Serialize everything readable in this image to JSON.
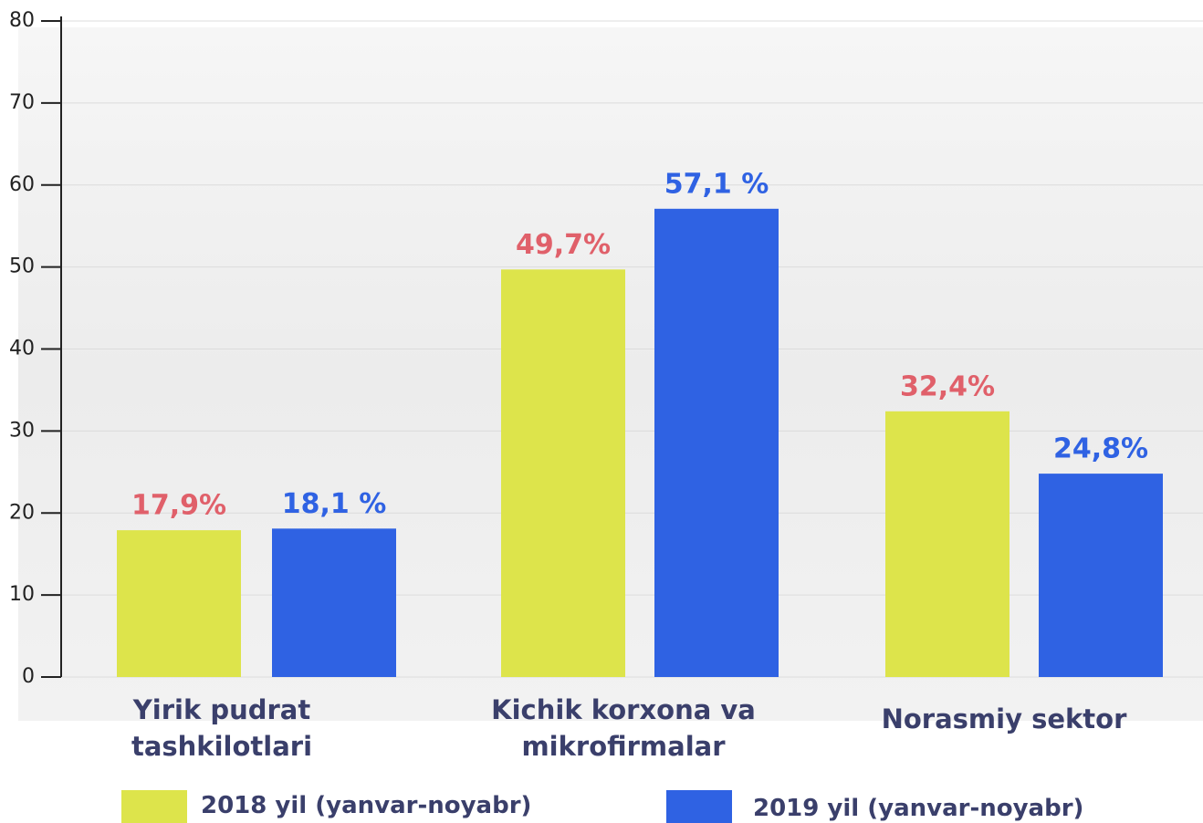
{
  "chart_data": {
    "type": "bar",
    "categories": [
      "Yirik pudrat tashkilotlari",
      "Kichik korxona va mikrofirmalar",
      "Norasmiy sektor"
    ],
    "series": [
      {
        "name": "2018 yil (yanvar-noyabr)",
        "color": "#dde44b",
        "label_color": "#e0606a",
        "values": [
          17.9,
          49.7,
          32.4
        ],
        "value_labels": [
          "17,9%",
          "49,7%",
          "32,4%"
        ]
      },
      {
        "name": "2019 yil (yanvar-noyabr)",
        "color": "#2f62e3",
        "label_color": "#2f62e3",
        "values": [
          18.1,
          57.1,
          24.8
        ],
        "value_labels": [
          "18,1 %",
          "57,1 %",
          "24,8%"
        ]
      }
    ],
    "ylim": [
      0,
      80
    ],
    "yticks": [
      0,
      10,
      20,
      30,
      40,
      50,
      60,
      70,
      80
    ],
    "grid": true
  }
}
